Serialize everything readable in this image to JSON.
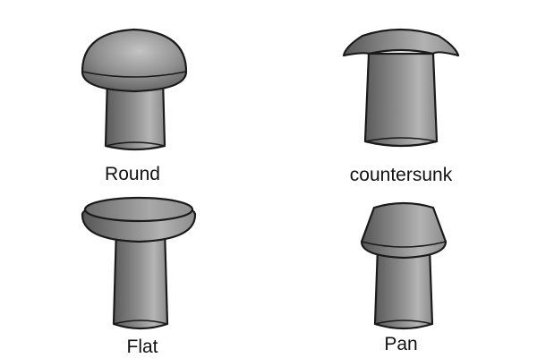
{
  "rivets": [
    {
      "id": "round",
      "label": "Round"
    },
    {
      "id": "countersunk",
      "label": "countersunk"
    },
    {
      "id": "flat",
      "label": "Flat"
    },
    {
      "id": "pan",
      "label": "Pan"
    }
  ]
}
